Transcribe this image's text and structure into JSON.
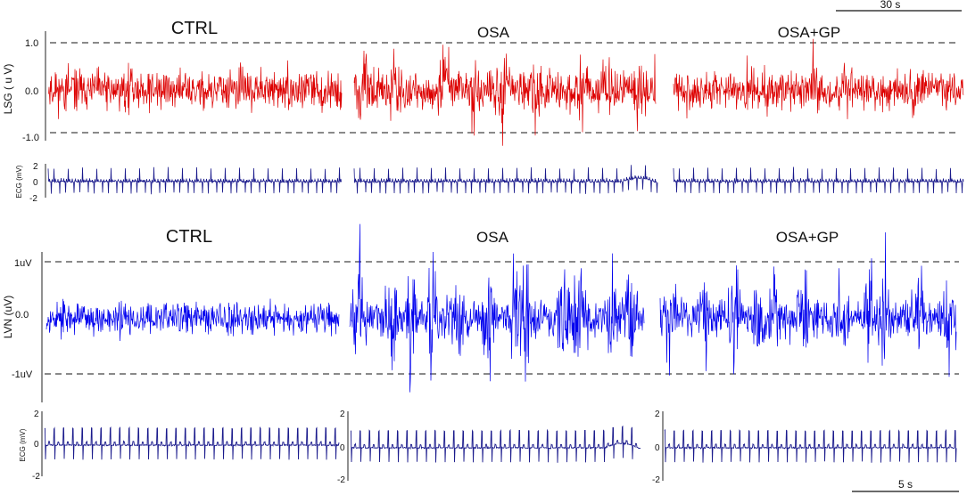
{
  "chart_data": [
    {
      "type": "line",
      "panel": "LSG",
      "ylabel": "LSG ( u V)",
      "yticks": [
        "1.0",
        "0.0",
        "-1.0"
      ],
      "ylim": [
        -1.4,
        1.6
      ],
      "threshold_lines": [
        1.0,
        -1.0
      ],
      "series_color": "#dd0000",
      "series": [
        {
          "name": "CTRL",
          "amplitude": 0.55,
          "bursts": 0.15
        },
        {
          "name": "OSA",
          "amplitude": 0.6,
          "bursts": 0.65
        },
        {
          "name": "OSA+GP",
          "amplitude": 0.5,
          "bursts": 0.35
        }
      ],
      "scale_bar": "30 s"
    },
    {
      "type": "line",
      "panel": "ECG-upper",
      "ylabel": "ECG (mV)",
      "yticks": [
        "2",
        "0",
        "-2"
      ],
      "ylim": [
        -2,
        2
      ],
      "series_color": "#1a1a8c",
      "series": [
        {
          "name": "CTRL"
        },
        {
          "name": "OSA"
        },
        {
          "name": "OSA+GP"
        }
      ]
    },
    {
      "type": "line",
      "panel": "LVN",
      "ylabel": "LVN (uV)",
      "yticks": [
        "1uV",
        "0.0",
        "-1uV"
      ],
      "ylim": [
        -1.7,
        1.6
      ],
      "threshold_lines": [
        1.0,
        -1.0
      ],
      "series_color": "#0000ee",
      "series": [
        {
          "name": "CTRL",
          "amplitude": 0.35,
          "bursts": 0.1
        },
        {
          "name": "OSA",
          "amplitude": 0.45,
          "bursts": 1.0
        },
        {
          "name": "OSA+GP",
          "amplitude": 0.45,
          "bursts": 0.9
        }
      ]
    },
    {
      "type": "line",
      "panel": "ECG-lower",
      "ylabel": "ECG (mV)",
      "yticks": [
        "2",
        "0",
        "-2"
      ],
      "ylim": [
        -2,
        2
      ],
      "series_color": "#1a1a8c",
      "series": [
        {
          "name": "CTRL"
        },
        {
          "name": "OSA"
        },
        {
          "name": "OSA+GP"
        }
      ],
      "scale_bar": "5 s"
    }
  ]
}
